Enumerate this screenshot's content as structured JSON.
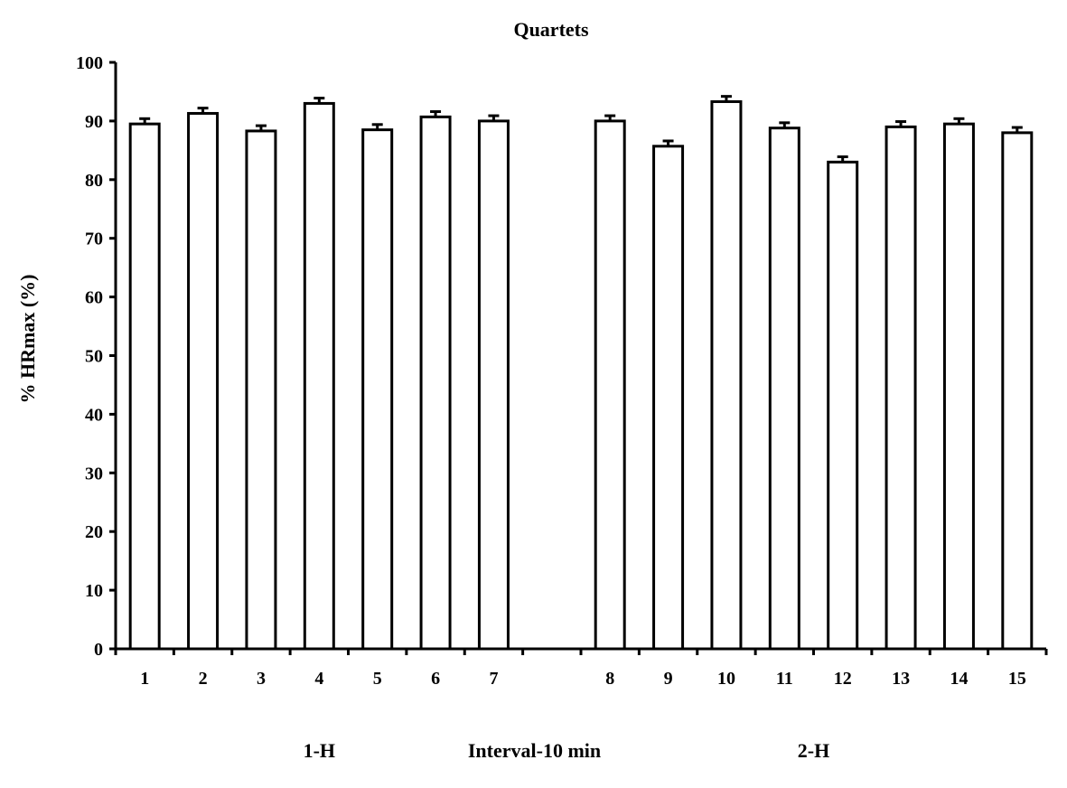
{
  "chart_data": {
    "type": "bar",
    "title": "Quartets",
    "xlabel": "",
    "ylabel": "% HRmax (%)",
    "ylim": [
      0,
      100
    ],
    "yticks": [
      0,
      10,
      20,
      30,
      40,
      50,
      60,
      70,
      80,
      90,
      100
    ],
    "grid": false,
    "legend": "none",
    "categories": [
      "1",
      "2",
      "3",
      "4",
      "5",
      "6",
      "7",
      "8",
      "9",
      "10",
      "11",
      "12",
      "13",
      "14",
      "15"
    ],
    "values": [
      89.5,
      91.3,
      88.3,
      93.0,
      88.5,
      90.7,
      90.0,
      90.0,
      85.7,
      93.3,
      88.8,
      83.0,
      89.0,
      89.5,
      88.0
    ],
    "error": [
      0.9,
      0.9,
      0.9,
      0.9,
      0.9,
      0.9,
      0.9,
      0.9,
      0.9,
      0.9,
      0.9,
      0.9,
      0.9,
      0.9,
      0.9
    ],
    "bar_fill": "#ffffff",
    "bar_stroke": "#000000",
    "groups": [
      {
        "label": "1-H",
        "categories": [
          "1",
          "2",
          "3",
          "4",
          "5",
          "6",
          "7"
        ]
      },
      {
        "label": "Interval-10 min",
        "categories": []
      },
      {
        "label": "2-H",
        "categories": [
          "8",
          "9",
          "10",
          "11",
          "12",
          "13",
          "14",
          "15"
        ]
      }
    ]
  }
}
